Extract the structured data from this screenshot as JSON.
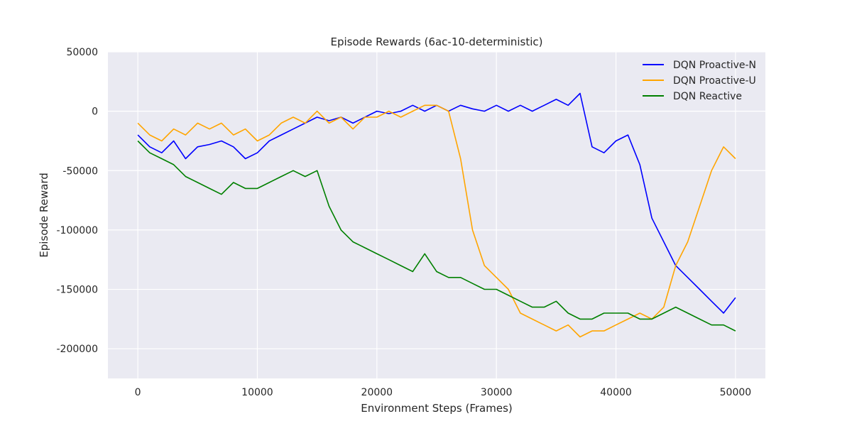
{
  "chart_data": {
    "type": "line",
    "title": "Episode Rewards (6ac-10-deterministic)",
    "xlabel": "Environment Steps (Frames)",
    "ylabel": "Episode Reward",
    "xlim": [
      -2500,
      52500
    ],
    "ylim": [
      -225000,
      50000
    ],
    "xticks": [
      0,
      10000,
      20000,
      30000,
      40000,
      50000
    ],
    "yticks": [
      50000,
      0,
      -50000,
      -100000,
      -150000,
      -200000
    ],
    "grid": true,
    "legend_position": "top-right",
    "background": "#eaeaf2",
    "series": [
      {
        "name": "DQN Proactive-N",
        "color": "#0000ff",
        "x": [
          0,
          1000,
          2000,
          3000,
          4000,
          5000,
          6000,
          7000,
          8000,
          9000,
          10000,
          11000,
          12000,
          13000,
          14000,
          15000,
          16000,
          17000,
          18000,
          19000,
          20000,
          21000,
          22000,
          23000,
          24000,
          25000,
          26000,
          27000,
          28000,
          29000,
          30000,
          31000,
          32000,
          33000,
          34000,
          35000,
          36000,
          37000,
          38000,
          39000,
          40000,
          41000,
          42000,
          43000,
          44000,
          45000,
          46000,
          47000,
          48000,
          49000,
          50000
        ],
        "y": [
          -20000,
          -30000,
          -35000,
          -25000,
          -40000,
          -30000,
          -28000,
          -25000,
          -30000,
          -40000,
          -35000,
          -25000,
          -20000,
          -15000,
          -10000,
          -5000,
          -8000,
          -5000,
          -10000,
          -5000,
          0,
          -2000,
          0,
          5000,
          0,
          5000,
          0,
          5000,
          2000,
          0,
          5000,
          0,
          5000,
          0,
          5000,
          10000,
          5000,
          15000,
          -30000,
          -35000,
          -25000,
          -20000,
          -45000,
          -90000,
          -110000,
          -130000,
          -140000,
          -150000,
          -160000,
          -170000,
          -157000
        ]
      },
      {
        "name": "DQN Proactive-U",
        "color": "#ffa500",
        "x": [
          0,
          1000,
          2000,
          3000,
          4000,
          5000,
          6000,
          7000,
          8000,
          9000,
          10000,
          11000,
          12000,
          13000,
          14000,
          15000,
          16000,
          17000,
          18000,
          19000,
          20000,
          21000,
          22000,
          23000,
          24000,
          25000,
          26000,
          27000,
          28000,
          29000,
          30000,
          31000,
          32000,
          33000,
          34000,
          35000,
          36000,
          37000,
          38000,
          39000,
          40000,
          41000,
          42000,
          43000,
          44000,
          45000,
          46000,
          47000,
          48000,
          49000,
          50000
        ],
        "y": [
          -10000,
          -20000,
          -25000,
          -15000,
          -20000,
          -10000,
          -15000,
          -10000,
          -20000,
          -15000,
          -25000,
          -20000,
          -10000,
          -5000,
          -10000,
          0,
          -10000,
          -5000,
          -15000,
          -5000,
          -5000,
          0,
          -5000,
          0,
          5000,
          5000,
          0,
          -40000,
          -100000,
          -130000,
          -140000,
          -150000,
          -170000,
          -175000,
          -180000,
          -185000,
          -180000,
          -190000,
          -185000,
          -185000,
          -180000,
          -175000,
          -170000,
          -175000,
          -165000,
          -130000,
          -110000,
          -80000,
          -50000,
          -30000,
          -40000
        ]
      },
      {
        "name": "DQN Reactive",
        "color": "#008000",
        "x": [
          0,
          1000,
          2000,
          3000,
          4000,
          5000,
          6000,
          7000,
          8000,
          9000,
          10000,
          11000,
          12000,
          13000,
          14000,
          15000,
          16000,
          17000,
          18000,
          19000,
          20000,
          21000,
          22000,
          23000,
          24000,
          25000,
          26000,
          27000,
          28000,
          29000,
          30000,
          31000,
          32000,
          33000,
          34000,
          35000,
          36000,
          37000,
          38000,
          39000,
          40000,
          41000,
          42000,
          43000,
          44000,
          45000,
          46000,
          47000,
          48000,
          49000,
          50000
        ],
        "y": [
          -25000,
          -35000,
          -40000,
          -45000,
          -55000,
          -60000,
          -65000,
          -70000,
          -60000,
          -65000,
          -65000,
          -60000,
          -55000,
          -50000,
          -55000,
          -50000,
          -80000,
          -100000,
          -110000,
          -115000,
          -120000,
          -125000,
          -130000,
          -135000,
          -120000,
          -135000,
          -140000,
          -140000,
          -145000,
          -150000,
          -150000,
          -155000,
          -160000,
          -165000,
          -165000,
          -160000,
          -170000,
          -175000,
          -175000,
          -170000,
          -170000,
          -170000,
          -175000,
          -175000,
          -170000,
          -165000,
          -170000,
          -175000,
          -180000,
          -180000,
          -185000
        ]
      }
    ]
  }
}
